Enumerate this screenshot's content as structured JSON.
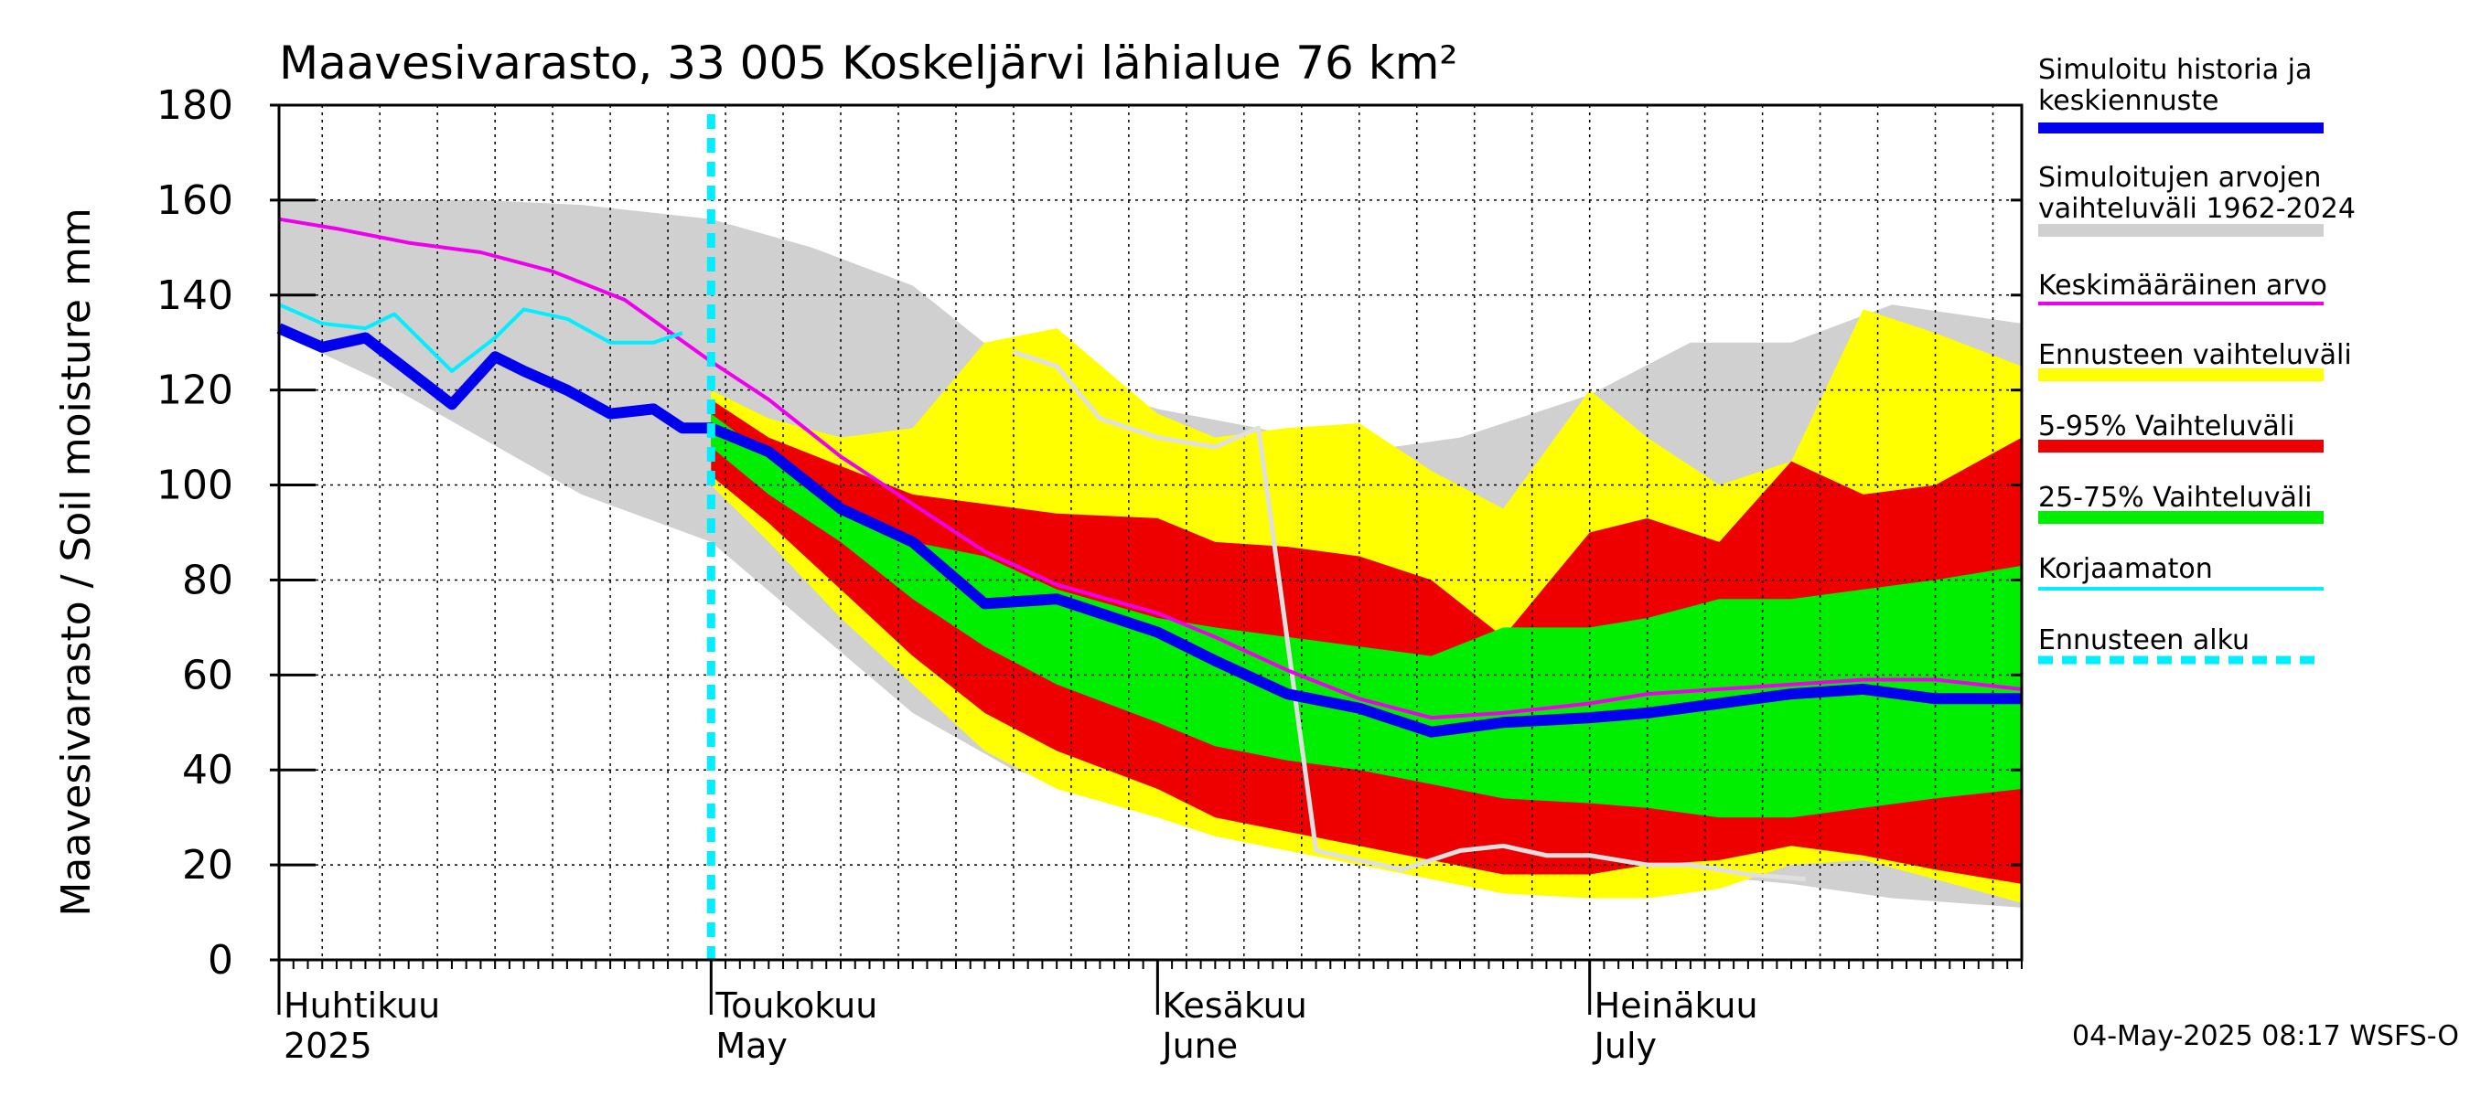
{
  "chart_data": {
    "type": "area",
    "title": "Maavesivarasto, 33 005 Koskeljärvi lähialue 76 km²",
    "ylabel": "Maavesivarasto / Soil moisture   mm",
    "ylim": [
      0,
      180
    ],
    "yticks": [
      "0",
      "20",
      "40",
      "60",
      "80",
      "100",
      "120",
      "140",
      "160",
      "180"
    ],
    "x_start": "2025-04-01",
    "x_end": "2025-07-31",
    "forecast_start": "2025-05-01",
    "months": [
      {
        "fi": "Huhtikuu",
        "en": "2025",
        "date": "2025-04-01"
      },
      {
        "fi": "Toukokuu",
        "en": "May",
        "date": "2025-05-01"
      },
      {
        "fi": "Kesäkuu",
        "en": "June",
        "date": "2025-06-01"
      },
      {
        "fi": "Heinäkuu",
        "en": "July",
        "date": "2025-07-01"
      }
    ],
    "grid": true,
    "legend_position": "right",
    "timestamp": "04-May-2025 08:17 WSFS-O",
    "colors": {
      "history_range": "#d0d0d0",
      "forecast_range": "#ffff00",
      "p5_95": "#ee0000",
      "p25_75": "#00ee00",
      "sim_history": "#0000ee",
      "mean": "#ee00ee",
      "uncorrected": "#00eeff",
      "forecast_start": "#00eeff",
      "dry_year": "#e0e0e0"
    },
    "legend": [
      {
        "label": "Simuloitu historia ja keskiennuste",
        "lines": [
          "Simuloitu historia ja",
          "keskiennuste"
        ],
        "color": "#0000ee",
        "style": "thick"
      },
      {
        "label": "Simuloitujen arvojen vaihteluväli 1962-2024",
        "lines": [
          "Simuloitujen arvojen",
          "vaihteluväli 1962-2024"
        ],
        "color": "#d0d0d0",
        "style": "band"
      },
      {
        "label": "Keskimääräinen arvo",
        "lines": [
          "Keskimääräinen arvo"
        ],
        "color": "#ee00ee",
        "style": "thin"
      },
      {
        "label": "Ennusteen vaihteluväli",
        "lines": [
          "Ennusteen vaihteluväli"
        ],
        "color": "#ffff00",
        "style": "band"
      },
      {
        "label": "5-95% Vaihteluväli",
        "lines": [
          "5-95% Vaihteluväli"
        ],
        "color": "#ee0000",
        "style": "band"
      },
      {
        "label": "25-75% Vaihteluväli",
        "lines": [
          "25-75% Vaihteluväli"
        ],
        "color": "#00ee00",
        "style": "band"
      },
      {
        "label": "Korjaamaton",
        "lines": [
          "Korjaamaton"
        ],
        "color": "#00eeff",
        "style": "thin"
      },
      {
        "label": "Ennusteen alku",
        "lines": [
          "Ennusteen alku"
        ],
        "color": "#00eeff",
        "style": "dashed"
      }
    ],
    "series": [
      {
        "name": "Simuloitujen arvojen vaihteluväli 1962-2024",
        "kind": "band",
        "x": [
          "2025-04-01",
          "2025-04-08",
          "2025-04-15",
          "2025-04-22",
          "2025-05-01",
          "2025-05-08",
          "2025-05-15",
          "2025-05-22",
          "2025-06-01",
          "2025-06-08",
          "2025-06-15",
          "2025-06-22",
          "2025-07-01",
          "2025-07-08",
          "2025-07-15",
          "2025-07-22",
          "2025-07-31"
        ],
        "upper": [
          160,
          160,
          160,
          159,
          156,
          150,
          142,
          125,
          116,
          112,
          107,
          110,
          119,
          130,
          130,
          138,
          134
        ],
        "lower": [
          132,
          122,
          110,
          98,
          88,
          70,
          52,
          40,
          32,
          28,
          23,
          22,
          20,
          18,
          16,
          13,
          11
        ]
      },
      {
        "name": "Ennusteen vaihteluväli",
        "kind": "band",
        "x": [
          "2025-05-01",
          "2025-05-05",
          "2025-05-10",
          "2025-05-15",
          "2025-05-20",
          "2025-05-25",
          "2025-06-01",
          "2025-06-05",
          "2025-06-10",
          "2025-06-15",
          "2025-06-20",
          "2025-06-25",
          "2025-07-01",
          "2025-07-05",
          "2025-07-10",
          "2025-07-15",
          "2025-07-20",
          "2025-07-25",
          "2025-07-31"
        ],
        "upper": [
          120,
          114,
          110,
          112,
          130,
          133,
          115,
          110,
          112,
          113,
          103,
          95,
          120,
          110,
          100,
          105,
          137,
          132,
          125
        ],
        "lower": [
          100,
          88,
          72,
          58,
          44,
          36,
          30,
          26,
          23,
          20,
          17,
          14,
          13,
          13,
          15,
          20,
          21,
          17,
          12
        ]
      },
      {
        "name": "5-95% Vaihteluväli",
        "kind": "band",
        "x": [
          "2025-05-01",
          "2025-05-05",
          "2025-05-10",
          "2025-05-15",
          "2025-05-20",
          "2025-05-25",
          "2025-06-01",
          "2025-06-05",
          "2025-06-10",
          "2025-06-15",
          "2025-06-20",
          "2025-06-25",
          "2025-07-01",
          "2025-07-05",
          "2025-07-10",
          "2025-07-15",
          "2025-07-20",
          "2025-07-25",
          "2025-07-31"
        ],
        "upper": [
          118,
          110,
          104,
          98,
          96,
          94,
          93,
          88,
          87,
          85,
          80,
          68,
          90,
          93,
          88,
          105,
          98,
          100,
          110
        ],
        "lower": [
          102,
          92,
          78,
          64,
          52,
          44,
          36,
          30,
          27,
          24,
          21,
          18,
          18,
          20,
          21,
          24,
          22,
          19,
          16
        ]
      },
      {
        "name": "25-75% Vaihteluväli",
        "kind": "band",
        "x": [
          "2025-05-01",
          "2025-05-05",
          "2025-05-10",
          "2025-05-15",
          "2025-05-20",
          "2025-05-25",
          "2025-06-01",
          "2025-06-05",
          "2025-06-10",
          "2025-06-15",
          "2025-06-20",
          "2025-06-25",
          "2025-07-01",
          "2025-07-05",
          "2025-07-10",
          "2025-07-15",
          "2025-07-20",
          "2025-07-25",
          "2025-07-31"
        ],
        "upper": [
          115,
          106,
          96,
          88,
          85,
          78,
          72,
          70,
          68,
          66,
          64,
          70,
          70,
          72,
          76,
          76,
          78,
          80,
          83
        ],
        "lower": [
          108,
          98,
          88,
          76,
          66,
          58,
          50,
          45,
          42,
          40,
          37,
          34,
          33,
          32,
          30,
          30,
          32,
          34,
          36
        ]
      },
      {
        "name": "Keskimääräinen arvo",
        "kind": "line",
        "x": [
          "2025-04-01",
          "2025-04-05",
          "2025-04-10",
          "2025-04-15",
          "2025-04-20",
          "2025-04-25",
          "2025-05-01",
          "2025-05-05",
          "2025-05-10",
          "2025-05-15",
          "2025-05-20",
          "2025-05-25",
          "2025-06-01",
          "2025-06-05",
          "2025-06-10",
          "2025-06-15",
          "2025-06-20",
          "2025-06-25",
          "2025-07-01",
          "2025-07-05",
          "2025-07-10",
          "2025-07-15",
          "2025-07-20",
          "2025-07-25",
          "2025-07-31"
        ],
        "values": [
          156,
          154,
          151,
          149,
          145,
          139,
          126,
          118,
          106,
          96,
          86,
          79,
          73,
          68,
          61,
          55,
          51,
          52,
          54,
          56,
          57,
          58,
          59,
          59,
          57
        ]
      },
      {
        "name": "Simuloitu historia ja keskiennuste",
        "kind": "line",
        "x": [
          "2025-04-01",
          "2025-04-04",
          "2025-04-07",
          "2025-04-10",
          "2025-04-13",
          "2025-04-16",
          "2025-04-18",
          "2025-04-21",
          "2025-04-24",
          "2025-04-27",
          "2025-04-29",
          "2025-05-01",
          "2025-05-05",
          "2025-05-10",
          "2025-05-15",
          "2025-05-20",
          "2025-05-25",
          "2025-06-01",
          "2025-06-05",
          "2025-06-10",
          "2025-06-15",
          "2025-06-20",
          "2025-06-25",
          "2025-07-01",
          "2025-07-05",
          "2025-07-10",
          "2025-07-15",
          "2025-07-20",
          "2025-07-25",
          "2025-07-31"
        ],
        "values": [
          133,
          129,
          131,
          124,
          117,
          127,
          124,
          120,
          115,
          116,
          112,
          112,
          107,
          95,
          88,
          75,
          76,
          69,
          63,
          56,
          53,
          48,
          50,
          51,
          52,
          54,
          56,
          57,
          55,
          55
        ]
      },
      {
        "name": "Korjaamaton",
        "kind": "line",
        "x": [
          "2025-04-01",
          "2025-04-04",
          "2025-04-07",
          "2025-04-09",
          "2025-04-13",
          "2025-04-16",
          "2025-04-18",
          "2025-04-21",
          "2025-04-24",
          "2025-04-27",
          "2025-04-29"
        ],
        "values": [
          138,
          134,
          133,
          136,
          124,
          131,
          137,
          135,
          130,
          130,
          132
        ]
      },
      {
        "name": "",
        "kind": "line",
        "x": [
          "2025-05-22",
          "2025-05-25",
          "2025-05-28",
          "2025-06-01",
          "2025-06-05",
          "2025-06-08",
          "2025-06-12",
          "2025-06-15",
          "2025-06-18",
          "2025-06-22",
          "2025-06-25",
          "2025-06-28",
          "2025-07-01",
          "2025-07-05",
          "2025-07-08",
          "2025-07-12",
          "2025-07-16"
        ],
        "values": [
          128,
          125,
          114,
          110,
          108,
          112,
          23,
          21,
          19,
          23,
          24,
          22,
          22,
          20,
          20,
          18,
          17
        ]
      }
    ]
  }
}
